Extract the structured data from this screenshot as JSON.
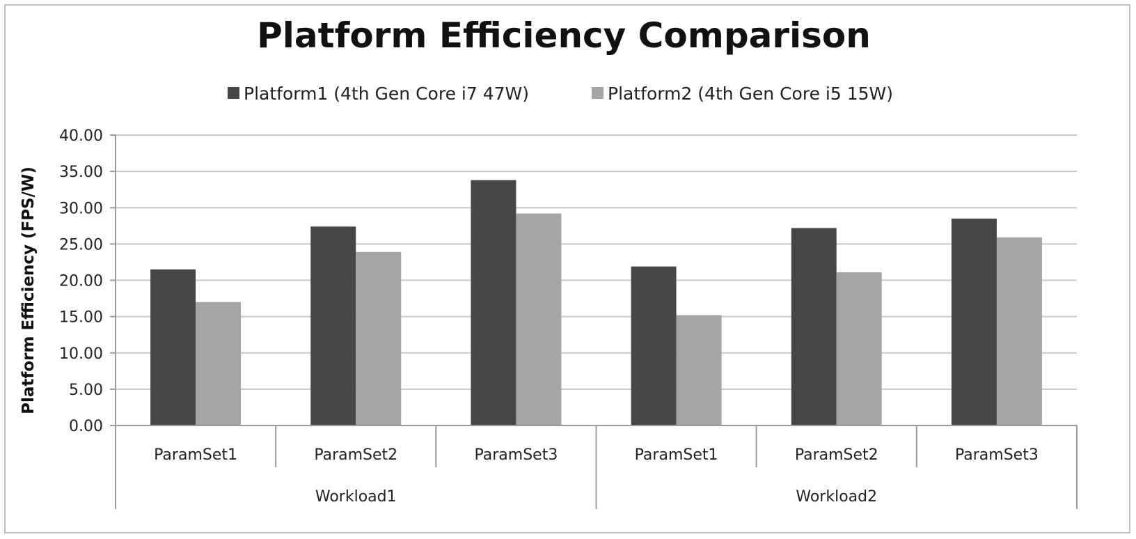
{
  "chart_data": {
    "type": "bar",
    "title": "Platform Efficiency Comparison",
    "xlabel": "",
    "ylabel": "Platform Efficiency (FPS/W)",
    "ylim": [
      0,
      40
    ],
    "yticks": [
      0,
      5,
      10,
      15,
      20,
      25,
      30,
      35,
      40
    ],
    "ytick_labels": [
      "0.00",
      "5.00",
      "10.00",
      "15.00",
      "20.00",
      "25.00",
      "30.00",
      "35.00",
      "40.00"
    ],
    "grid": true,
    "legend_position": "top",
    "groups": [
      {
        "label": "Workload1",
        "categories": [
          "ParamSet1",
          "ParamSet2",
          "ParamSet3"
        ]
      },
      {
        "label": "Workload2",
        "categories": [
          "ParamSet1",
          "ParamSet2",
          "ParamSet3"
        ]
      }
    ],
    "categories": [
      "ParamSet1",
      "ParamSet2",
      "ParamSet3",
      "ParamSet1",
      "ParamSet2",
      "ParamSet3"
    ],
    "series": [
      {
        "name": "Platform1 (4th Gen Core i7 47W)",
        "color": "#474747",
        "values": [
          21.5,
          27.4,
          33.8,
          21.9,
          27.2,
          28.5
        ]
      },
      {
        "name": "Platform2 (4th Gen Core i5 15W)",
        "color": "#a5a5a5",
        "values": [
          17.0,
          23.9,
          29.2,
          15.2,
          21.1,
          25.9
        ]
      }
    ],
    "gridline_color": "#c8c8c8",
    "axis_color": "#9a9a9a"
  }
}
